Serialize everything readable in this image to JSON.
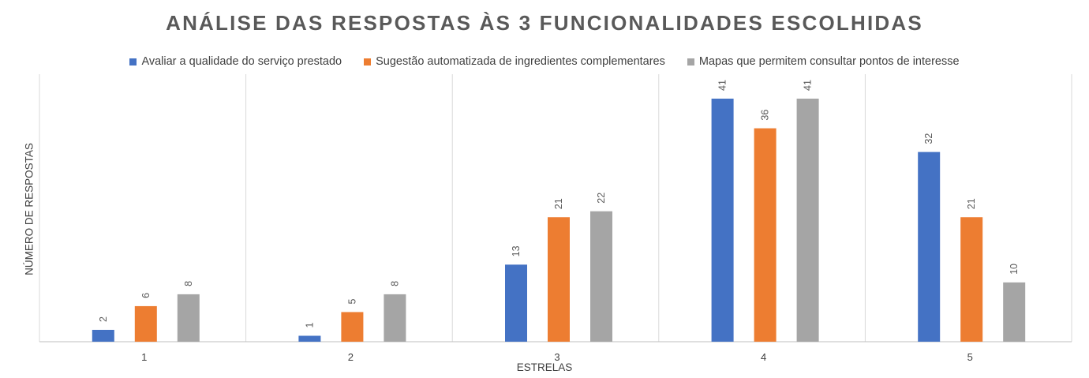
{
  "chart_data": {
    "type": "bar",
    "title": "ANÁLISE DAS RESPOSTAS ÀS 3 FUNCIONALIDADES ESCOLHIDAS",
    "xlabel": "ESTRELAS",
    "ylabel": "NÚMERO DE RESPOSTAS",
    "categories": [
      "1",
      "2",
      "3",
      "4",
      "5"
    ],
    "ylim": [
      0,
      41
    ],
    "grid": "vertical category separators",
    "legend_position": "top",
    "series": [
      {
        "name": "Avaliar a qualidade do serviço prestado",
        "color": "#4472c4",
        "values": [
          2,
          1,
          13,
          41,
          32
        ]
      },
      {
        "name": "Sugestão automatizada de ingredientes complementares",
        "color": "#ed7d31",
        "values": [
          6,
          5,
          21,
          36,
          21
        ]
      },
      {
        "name": "Mapas que permitem consultar pontos de interesse",
        "color": "#a5a5a5",
        "values": [
          8,
          8,
          22,
          41,
          10
        ]
      }
    ]
  }
}
